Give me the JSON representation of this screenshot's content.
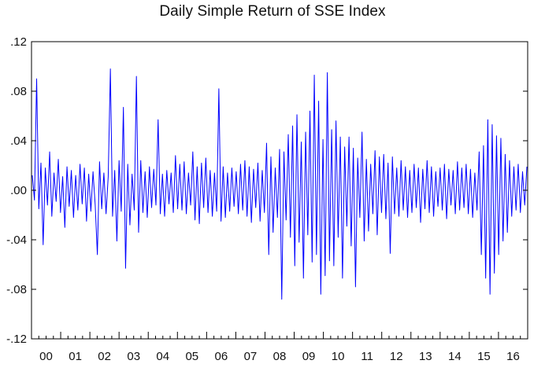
{
  "chart_data": {
    "type": "line",
    "title": "Daily Simple Return of SSE Index",
    "xlabel": "",
    "ylabel": "",
    "ylim": [
      -0.12,
      0.12
    ],
    "y_ticks": [
      {
        "value": 0.12,
        "label": ".12"
      },
      {
        "value": 0.08,
        "label": ".08"
      },
      {
        "value": 0.04,
        "label": ".04"
      },
      {
        "value": 0.0,
        "label": ".00"
      },
      {
        "value": -0.04,
        "label": "-.04"
      },
      {
        "value": -0.08,
        "label": "-.08"
      },
      {
        "value": -0.12,
        "label": "-.12"
      }
    ],
    "x_ticks": [
      "00",
      "01",
      "02",
      "03",
      "04",
      "05",
      "06",
      "07",
      "08",
      "09",
      "10",
      "11",
      "12",
      "13",
      "14",
      "15",
      "16"
    ],
    "grid": false,
    "series_color": "#0000ff",
    "series": [
      {
        "name": "",
        "values": [
          0.012,
          -0.008,
          0.09,
          -0.015,
          0.022,
          -0.044,
          0.018,
          -0.012,
          0.031,
          -0.021,
          0.014,
          -0.009,
          0.025,
          -0.018,
          0.011,
          -0.03,
          0.019,
          -0.013,
          0.016,
          -0.022,
          0.012,
          -0.016,
          0.021,
          -0.011,
          0.018,
          -0.025,
          0.013,
          -0.017,
          0.015,
          -0.012,
          -0.052,
          0.023,
          -0.015,
          0.014,
          -0.019,
          0.011,
          0.098,
          -0.021,
          0.016,
          -0.041,
          0.024,
          -0.017,
          0.067,
          -0.063,
          0.021,
          -0.028,
          0.013,
          -0.016,
          0.092,
          -0.034,
          0.024,
          -0.018,
          0.015,
          -0.022,
          0.019,
          -0.014,
          0.017,
          -0.012,
          0.057,
          -0.019,
          0.013,
          -0.021,
          0.016,
          -0.011,
          0.014,
          -0.018,
          0.028,
          -0.015,
          0.021,
          -0.016,
          0.023,
          -0.019,
          0.014,
          -0.012,
          0.031,
          -0.024,
          0.019,
          -0.027,
          0.022,
          -0.014,
          0.026,
          -0.018,
          0.016,
          -0.021,
          0.014,
          -0.017,
          0.082,
          -0.025,
          0.019,
          -0.022,
          0.014,
          -0.017,
          0.018,
          -0.013,
          0.015,
          -0.019,
          0.021,
          -0.016,
          0.024,
          -0.021,
          0.019,
          -0.026,
          0.017,
          -0.014,
          0.022,
          -0.025,
          0.016,
          -0.018,
          0.038,
          -0.052,
          0.027,
          -0.034,
          0.018,
          -0.022,
          0.033,
          -0.088,
          0.031,
          -0.024,
          0.045,
          -0.038,
          0.052,
          -0.061,
          0.061,
          -0.042,
          0.039,
          -0.071,
          0.047,
          -0.036,
          0.064,
          -0.058,
          0.093,
          -0.052,
          0.072,
          -0.084,
          0.041,
          -0.069,
          0.095,
          -0.057,
          0.049,
          -0.061,
          0.056,
          -0.038,
          0.043,
          -0.071,
          0.035,
          -0.029,
          0.043,
          -0.045,
          0.034,
          -0.078,
          0.026,
          -0.022,
          0.047,
          -0.041,
          0.025,
          -0.033,
          0.021,
          -0.019,
          0.032,
          -0.036,
          0.027,
          -0.018,
          0.029,
          -0.023,
          0.022,
          -0.051,
          0.027,
          -0.019,
          0.018,
          -0.021,
          0.024,
          -0.016,
          0.019,
          -0.022,
          0.016,
          -0.018,
          0.021,
          -0.014,
          0.018,
          -0.026,
          0.017,
          -0.015,
          0.024,
          -0.018,
          0.019,
          -0.021,
          0.015,
          -0.013,
          0.018,
          -0.016,
          0.021,
          -0.023,
          0.017,
          -0.012,
          0.016,
          -0.019,
          0.023,
          -0.016,
          0.018,
          -0.014,
          0.021,
          -0.019,
          0.017,
          -0.022,
          0.014,
          -0.016,
          0.031,
          -0.052,
          0.036,
          -0.071,
          0.057,
          -0.084,
          0.053,
          -0.067,
          0.044,
          -0.052,
          0.042,
          -0.041,
          0.029,
          -0.034,
          0.024,
          -0.021,
          0.019,
          -0.016,
          0.021,
          -0.018,
          0.015,
          -0.012,
          0.019
        ]
      }
    ]
  }
}
